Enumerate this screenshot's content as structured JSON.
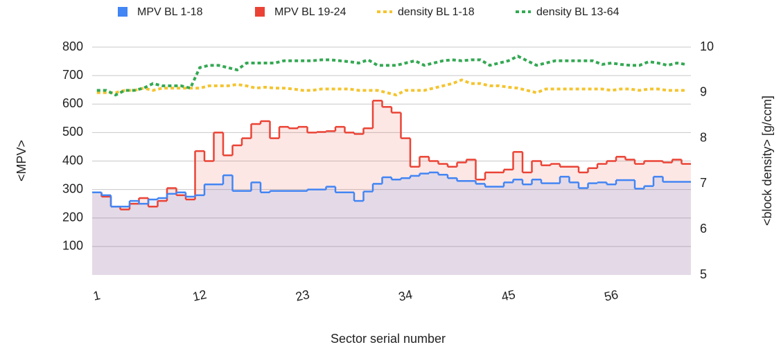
{
  "chart_data": {
    "type": "combo",
    "legend": "top",
    "grid": true,
    "x_label": "Sector serial number",
    "y_label": "<MPV>",
    "y2_label": "<block density> [g/ccm]",
    "categories": [
      "1",
      null,
      null,
      null,
      null,
      null,
      null,
      null,
      null,
      null,
      null,
      "12",
      null,
      null,
      null,
      null,
      null,
      null,
      null,
      null,
      null,
      null,
      "23",
      null,
      null,
      null,
      null,
      null,
      null,
      null,
      null,
      null,
      null,
      "34",
      null,
      null,
      null,
      null,
      null,
      null,
      null,
      null,
      null,
      null,
      "45",
      null,
      null,
      null,
      null,
      null,
      null,
      null,
      null,
      null,
      null,
      "56",
      null,
      null,
      null,
      null,
      null,
      null,
      null,
      null
    ],
    "ylim": [
      0,
      800
    ],
    "yticks": [
      100,
      200,
      300,
      400,
      500,
      600,
      700,
      800
    ],
    "y2lim": [
      5,
      10
    ],
    "y2ticks": [
      5,
      6,
      7,
      8,
      9,
      10
    ],
    "series": [
      {
        "name": "MPV BL 19-24",
        "type": "stepped-area",
        "color": "#ea4335",
        "values": [
          290,
          275,
          240,
          230,
          250,
          270,
          240,
          260,
          305,
          280,
          265,
          435,
          400,
          500,
          420,
          455,
          480,
          530,
          540,
          480,
          520,
          515,
          520,
          500,
          502,
          505,
          520,
          500,
          495,
          515,
          612,
          590,
          570,
          480,
          380,
          415,
          400,
          390,
          380,
          395,
          405,
          335,
          360,
          360,
          370,
          432,
          360,
          400,
          385,
          390,
          380,
          380,
          360,
          375,
          390,
          400,
          415,
          405,
          390,
          400,
          400,
          395,
          405,
          390
        ]
      },
      {
        "name": "MPV BL 1-18",
        "type": "stepped-area",
        "color": "#4285f4",
        "values": [
          290,
          280,
          240,
          240,
          260,
          250,
          265,
          270,
          285,
          290,
          275,
          280,
          318,
          318,
          350,
          295,
          295,
          325,
          290,
          295,
          295,
          295,
          295,
          300,
          300,
          310,
          290,
          290,
          260,
          293,
          320,
          343,
          335,
          340,
          348,
          356,
          360,
          352,
          340,
          330,
          330,
          320,
          310,
          310,
          325,
          335,
          318,
          335,
          322,
          322,
          345,
          325,
          305,
          322,
          325,
          318,
          333,
          333,
          303,
          312,
          345,
          327,
          327,
          327
        ]
      },
      {
        "name": "density BL 1-18",
        "type": "line",
        "style": "dotted",
        "axis": "y2",
        "color": "#f4c430",
        "values": [
          9.0,
          9.0,
          9.0,
          9.05,
          9.05,
          9.1,
          9.05,
          9.1,
          9.1,
          9.1,
          9.1,
          9.1,
          9.15,
          9.15,
          9.15,
          9.18,
          9.15,
          9.1,
          9.12,
          9.1,
          9.1,
          9.08,
          9.05,
          9.05,
          9.08,
          9.08,
          9.08,
          9.08,
          9.05,
          9.05,
          9.05,
          9.0,
          8.95,
          9.05,
          9.05,
          9.05,
          9.1,
          9.15,
          9.2,
          9.28,
          9.2,
          9.2,
          9.15,
          9.15,
          9.12,
          9.1,
          9.05,
          9.0,
          9.08,
          9.08,
          9.08,
          9.08,
          9.08,
          9.08,
          9.08,
          9.05,
          9.08,
          9.08,
          9.05,
          9.08,
          9.08,
          9.05,
          9.05,
          9.05
        ]
      },
      {
        "name": "density BL 13-64",
        "type": "line",
        "style": "dotted",
        "axis": "y2",
        "color": "#34a853",
        "values": [
          9.05,
          9.05,
          8.95,
          9.05,
          9.05,
          9.1,
          9.2,
          9.15,
          9.15,
          9.15,
          9.1,
          9.55,
          9.6,
          9.6,
          9.55,
          9.5,
          9.65,
          9.65,
          9.65,
          9.65,
          9.7,
          9.7,
          9.7,
          9.7,
          9.72,
          9.72,
          9.7,
          9.68,
          9.65,
          9.72,
          9.6,
          9.6,
          9.6,
          9.65,
          9.7,
          9.6,
          9.65,
          9.7,
          9.72,
          9.7,
          9.72,
          9.72,
          9.6,
          9.65,
          9.7,
          9.8,
          9.7,
          9.6,
          9.65,
          9.7,
          9.7,
          9.7,
          9.7,
          9.7,
          9.62,
          9.65,
          9.62,
          9.6,
          9.6,
          9.68,
          9.65,
          9.6,
          9.65,
          9.62
        ]
      }
    ],
    "legend_order": [
      1,
      0,
      2,
      3
    ]
  }
}
